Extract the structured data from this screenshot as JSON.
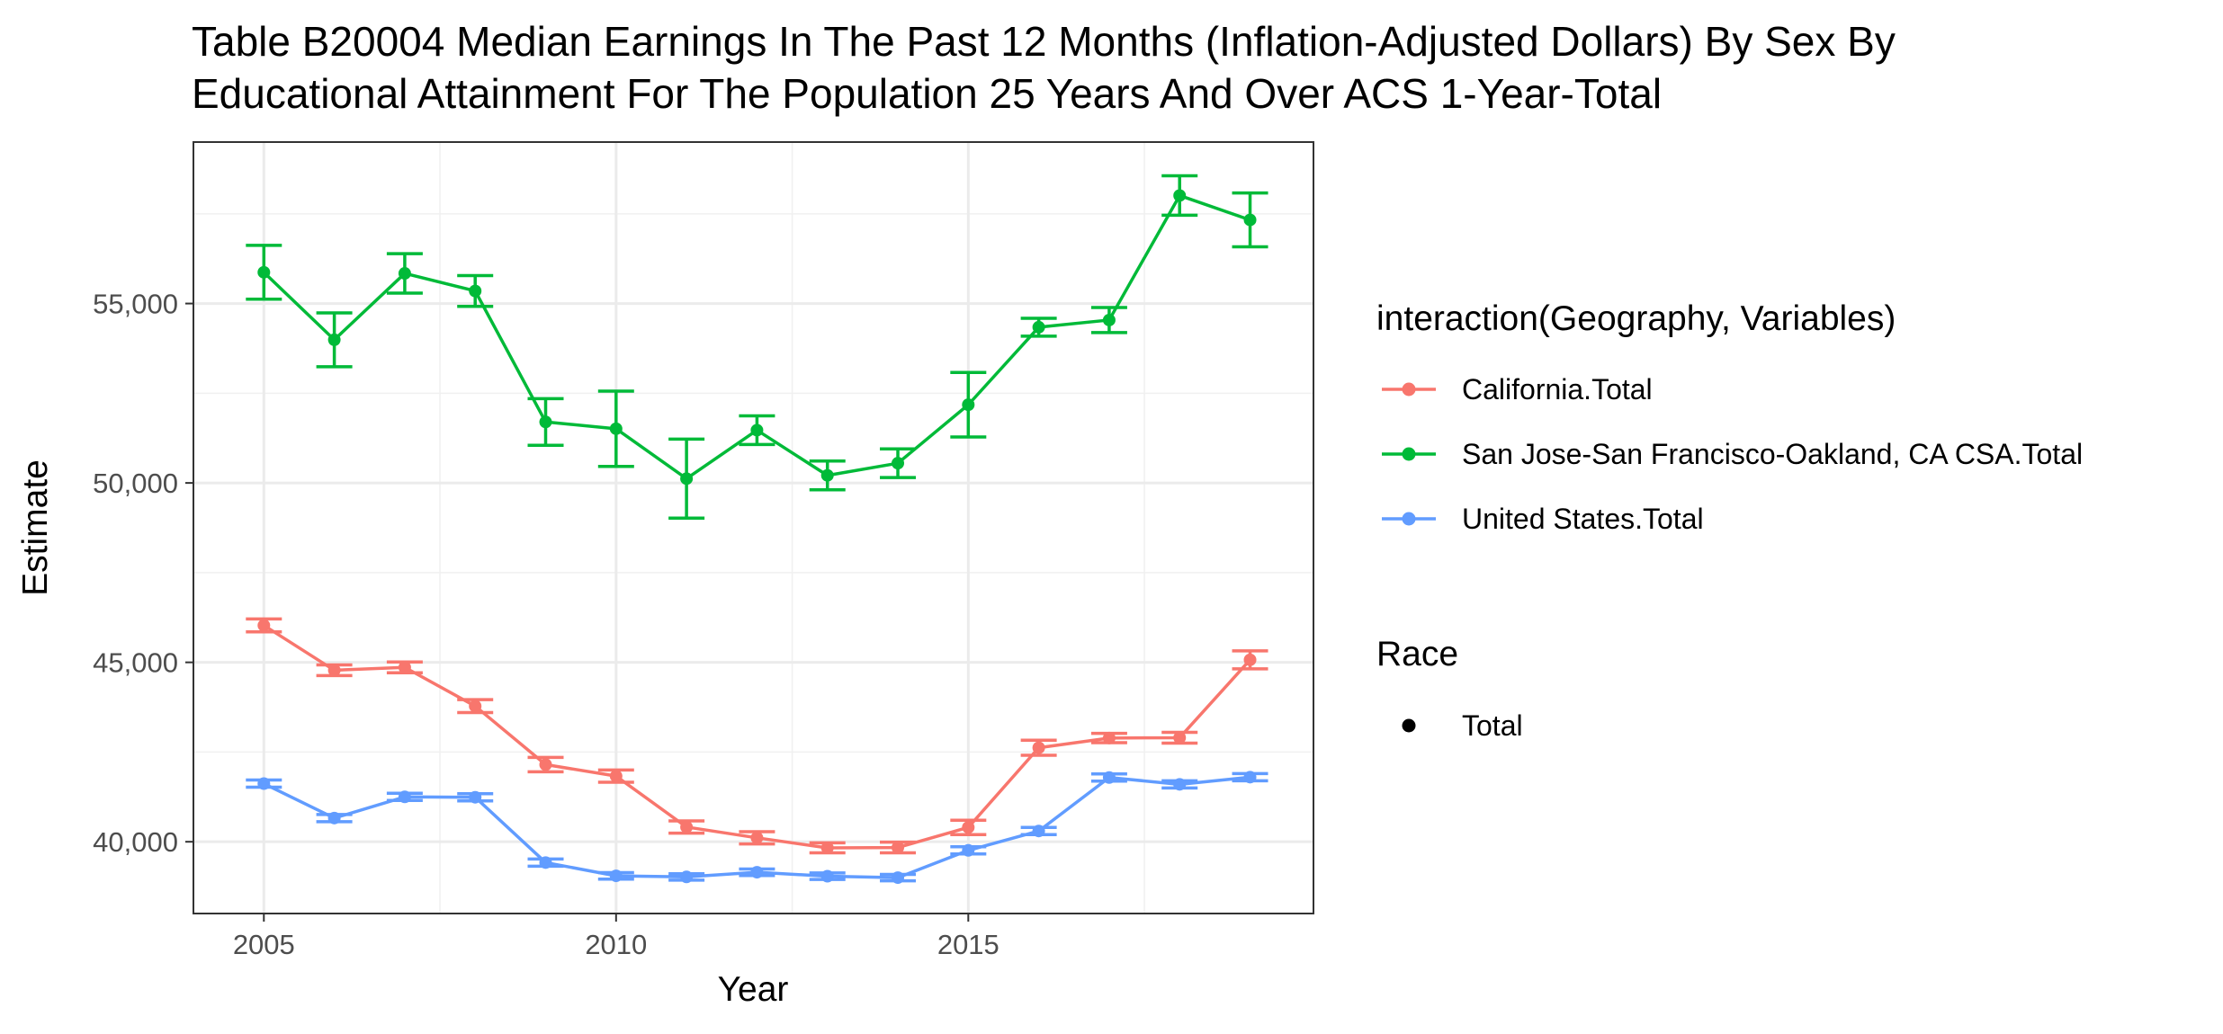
{
  "chart_data": {
    "type": "line",
    "title": "Table B20004 Median Earnings In The Past 12 Months (Inflation-Adjusted Dollars) By Sex By Educational Attainment For The Population 25 Years And Over ACS 1-Year-Total",
    "title_lines": [
      "Table B20004 Median Earnings In The Past 12 Months (Inflation-Adjusted Dollars) By Sex By",
      "Educational Attainment For The Population 25 Years And Over ACS 1-Year-Total"
    ],
    "xlabel": "Year",
    "ylabel": "Estimate",
    "xlim": [
      2004,
      2019.9
    ],
    "ylim": [
      38000,
      59500
    ],
    "x_ticks": [
      2005,
      2010,
      2015
    ],
    "x_tick_labels": [
      "2005",
      "2010",
      "2015"
    ],
    "y_ticks": [
      40000,
      45000,
      50000,
      55000
    ],
    "y_tick_labels": [
      "40,000",
      "45,000",
      "50,000",
      "55,000"
    ],
    "grid": true,
    "legend_position": "right",
    "legend_color_title": "interaction(Geography, Variables)",
    "legend_shape_title": "Race",
    "legend_shape_entries": [
      "Total"
    ],
    "x": [
      2005,
      2006,
      2007,
      2008,
      2009,
      2010,
      2011,
      2012,
      2013,
      2014,
      2015,
      2016,
      2017,
      2018,
      2019
    ],
    "series": [
      {
        "name": "California.Total",
        "color": "#F8766D",
        "values": [
          46030,
          44780,
          44860,
          43780,
          42150,
          41830,
          40410,
          40110,
          39830,
          39840,
          40400,
          42620,
          42890,
          42900,
          45070
        ],
        "errors": [
          180,
          150,
          150,
          180,
          200,
          170,
          170,
          170,
          140,
          150,
          200,
          210,
          130,
          150,
          250
        ]
      },
      {
        "name": "San Jose-San Francisco-Oakland, CA CSA.Total",
        "color": "#00BA38",
        "values": [
          55870,
          53990,
          55840,
          55350,
          51700,
          51510,
          50120,
          51470,
          50210,
          50550,
          52180,
          54340,
          54540,
          58010,
          57330
        ],
        "errors": [
          750,
          750,
          550,
          430,
          650,
          1050,
          1100,
          400,
          400,
          400,
          900,
          250,
          350,
          550,
          750
        ]
      },
      {
        "name": "United States.Total",
        "color": "#619CFF",
        "values": [
          41620,
          40660,
          41250,
          41240,
          39420,
          39050,
          39020,
          39150,
          39040,
          39000,
          39760,
          40300,
          41790,
          41600,
          41800
        ],
        "errors": [
          100,
          100,
          100,
          100,
          100,
          90,
          90,
          90,
          90,
          90,
          100,
          100,
          100,
          100,
          100
        ]
      }
    ]
  }
}
